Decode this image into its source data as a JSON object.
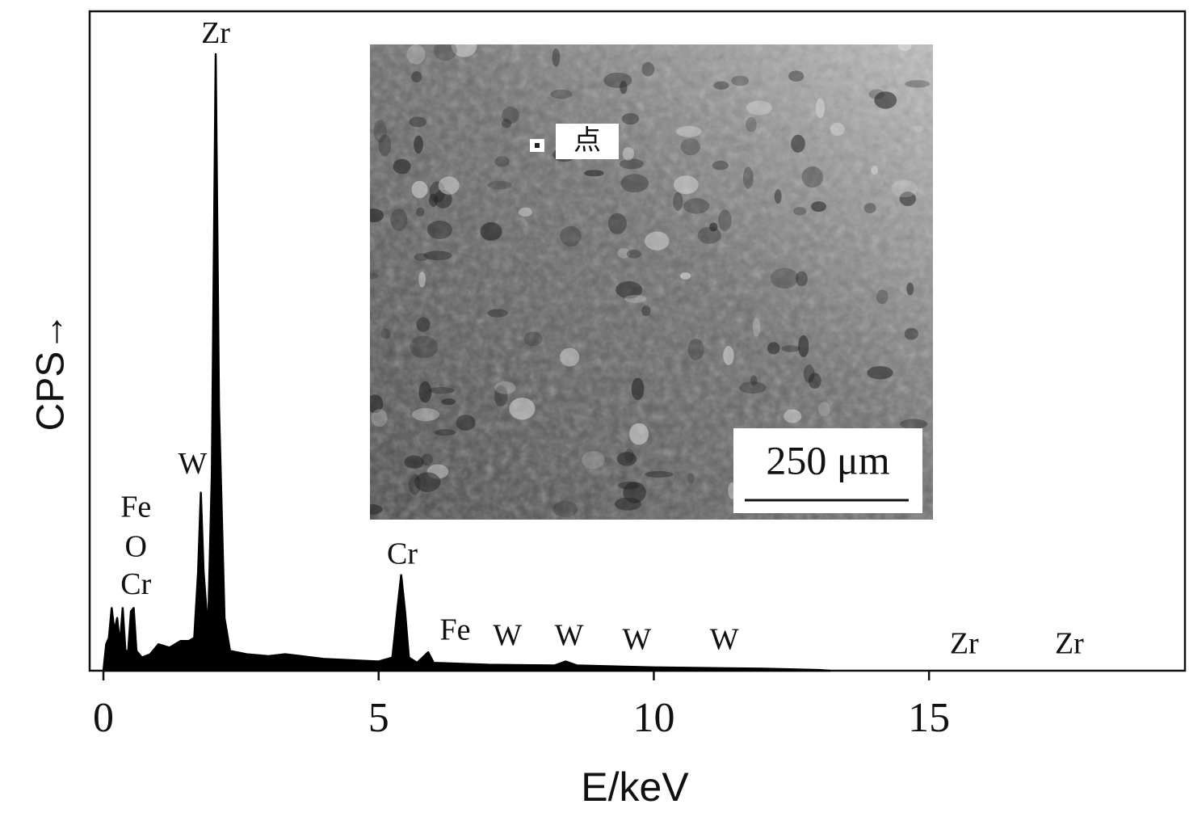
{
  "chart_data": {
    "type": "area",
    "ylabel": "CPS→",
    "xlabel": "E/keV",
    "xlim": [
      -0.25,
      19.65
    ],
    "xticks": [
      0,
      5,
      10,
      15
    ],
    "ylim": [
      0,
      100
    ],
    "color": "#000000",
    "x": [
      0.0,
      0.05,
      0.1,
      0.15,
      0.2,
      0.25,
      0.3,
      0.35,
      0.4,
      0.45,
      0.5,
      0.55,
      0.6,
      0.7,
      0.85,
      1.0,
      1.2,
      1.4,
      1.55,
      1.65,
      1.72,
      1.77,
      1.82,
      1.9,
      1.97,
      2.04,
      2.1,
      2.2,
      2.3,
      2.6,
      3.0,
      3.3,
      3.6,
      4.0,
      4.5,
      5.0,
      5.25,
      5.35,
      5.41,
      5.48,
      5.55,
      5.7,
      5.9,
      6.0,
      7.0,
      8.2,
      8.4,
      8.6,
      10,
      12,
      13,
      13.2
    ],
    "values": [
      0,
      4,
      5,
      9.5,
      6,
      8,
      4,
      9.5,
      3,
      3,
      9,
      9.5,
      3,
      2,
      2.5,
      4,
      3.5,
      4.5,
      4.5,
      5,
      15,
      27,
      15,
      6,
      30,
      93.5,
      40,
      8,
      3,
      2.5,
      2.2,
      2.5,
      2.2,
      1.8,
      1.6,
      1.4,
      2,
      10,
      14.5,
      9,
      2,
      1.2,
      2.8,
      1.2,
      0.9,
      0.8,
      1.4,
      0.8,
      0.5,
      0.3,
      0.1,
      0
    ],
    "annotations": [
      {
        "text": "Zr",
        "x": 2.04,
        "y": 96.3
      },
      {
        "text": "W",
        "x": 1.62,
        "y": 31
      },
      {
        "text": "Fe",
        "x": 0.59,
        "y": 24.4
      },
      {
        "text": "O",
        "x": 0.59,
        "y": 18.4
      },
      {
        "text": "Cr",
        "x": 0.59,
        "y": 12.7
      },
      {
        "text": "Cr",
        "x": 5.43,
        "y": 17.3
      },
      {
        "text": "Fe",
        "x": 6.39,
        "y": 5.8
      },
      {
        "text": "W",
        "x": 7.34,
        "y": 4.9
      },
      {
        "text": "W",
        "x": 8.46,
        "y": 4.9
      },
      {
        "text": "W",
        "x": 9.69,
        "y": 4.3
      },
      {
        "text": "W",
        "x": 11.28,
        "y": 4.3
      },
      {
        "text": "Zr",
        "x": 15.64,
        "y": 3.7
      },
      {
        "text": "Zr",
        "x": 17.55,
        "y": 3.7
      }
    ],
    "inset": {
      "marker_label": "点",
      "scale_bar": "250 μm"
    }
  }
}
